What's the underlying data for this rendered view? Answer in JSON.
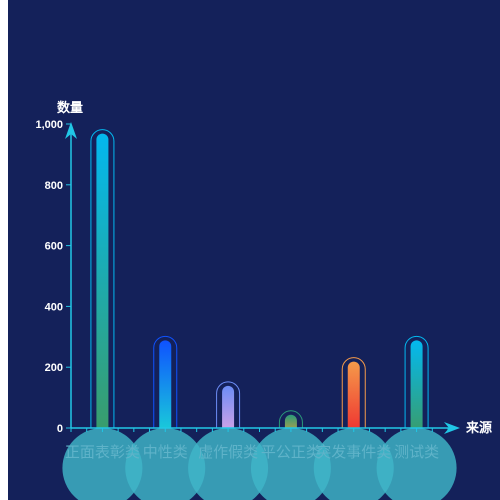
{
  "chart_data": {
    "type": "bar",
    "ylabel": "数量",
    "xlabel": "来源",
    "ylim": [
      0,
      1000
    ],
    "yticks": [
      0,
      200,
      400,
      600,
      800,
      1000
    ],
    "ytick_labels": [
      "0",
      "200",
      "400",
      "600",
      "800",
      "1,000"
    ],
    "categories": [
      "正面表彰类",
      "中性类",
      "虚作假类",
      "平公正类",
      "突发事件类",
      "测试类"
    ],
    "values": [
      975,
      295,
      145,
      50,
      225,
      295
    ],
    "bar_gradients": [
      [
        "#03b8ef",
        "#3a9c6a"
      ],
      [
        "#0f52ff",
        "#1ad0d8"
      ],
      [
        "#6c8cf5",
        "#d6a4e6"
      ],
      [
        "#2a9a7a",
        "#c8a040"
      ],
      [
        "#f59a4a",
        "#ee3030"
      ],
      [
        "#03b8ef",
        "#3a9c6a"
      ]
    ],
    "axis_color": "#21c7e6",
    "circle_color": "#3fb6c8",
    "grid": false
  }
}
